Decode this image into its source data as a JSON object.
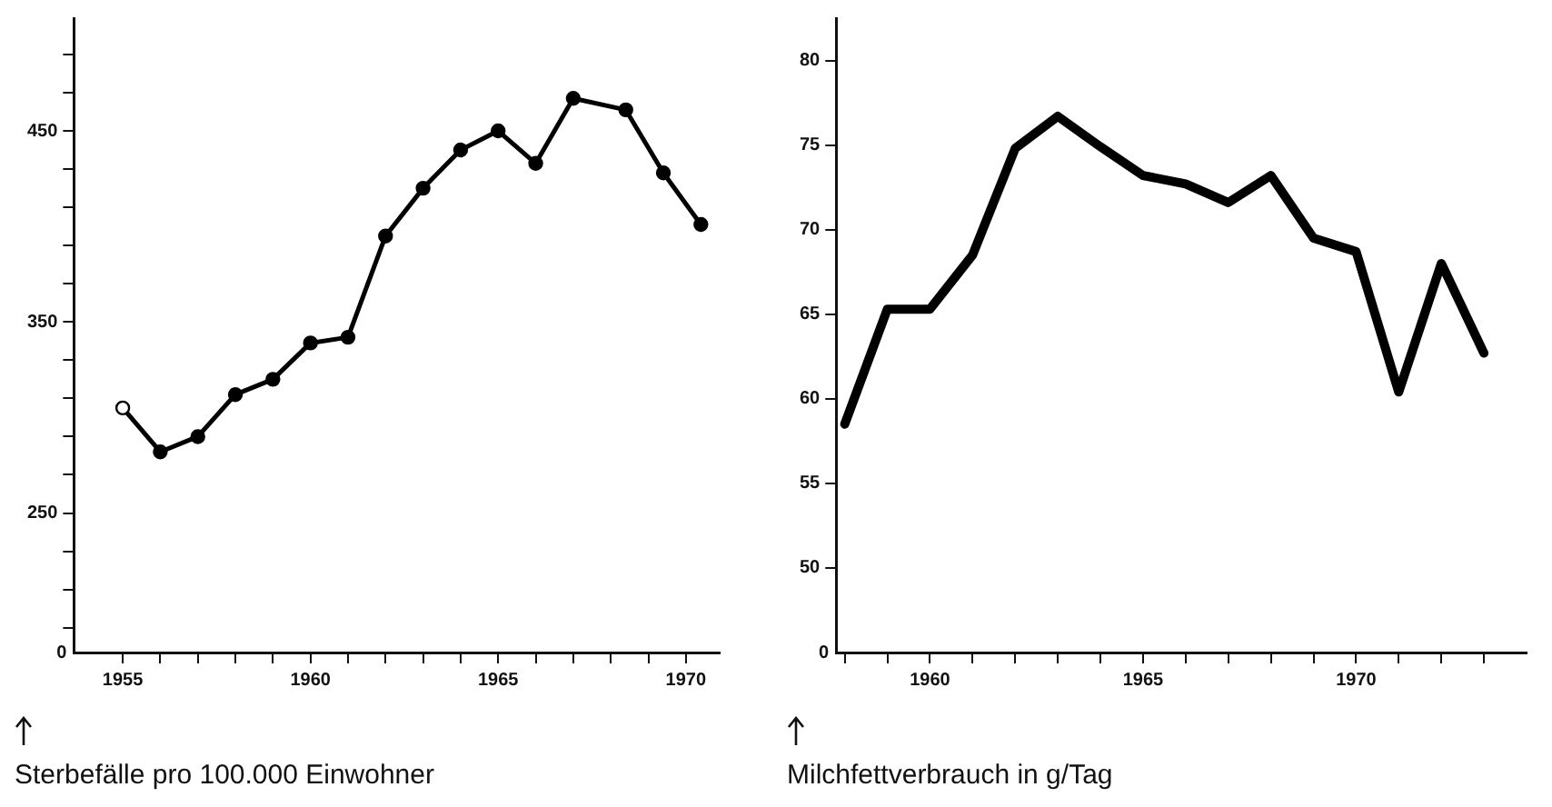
{
  "chart_data": [
    {
      "type": "line",
      "ylabel": "Sterbefälle pro 100.000 Einwohner",
      "annotations": [
        "0"
      ],
      "xlim": [
        1953.7,
        1970.9
      ],
      "xticks": [
        1955,
        {
          "value": 1956,
          "label": null
        },
        {
          "value": 1957,
          "label": null
        },
        {
          "value": 1958,
          "label": null
        },
        {
          "value": 1959,
          "label": null
        },
        1960,
        {
          "value": 1961,
          "label": null
        },
        {
          "value": 1962,
          "label": null
        },
        {
          "value": 1963,
          "label": null
        },
        {
          "value": 1964,
          "label": null
        },
        1965,
        {
          "value": 1966,
          "label": null
        },
        {
          "value": 1967,
          "label": null
        },
        {
          "value": 1968,
          "label": null
        },
        {
          "value": 1969,
          "label": null
        },
        1970
      ],
      "ylim": [
        177,
        509
      ],
      "yticks": [
        {
          "value": 190,
          "label": null
        },
        {
          "value": 210,
          "label": null
        },
        {
          "value": 230,
          "label": null
        },
        250,
        {
          "value": 270,
          "label": null
        },
        {
          "value": 290,
          "label": null
        },
        {
          "value": 310,
          "label": null
        },
        {
          "value": 330,
          "label": null
        },
        350,
        {
          "value": 370,
          "label": null
        },
        {
          "value": 390,
          "label": null
        },
        {
          "value": 410,
          "label": null
        },
        {
          "value": 430,
          "label": null
        },
        450,
        {
          "value": 470,
          "label": null
        },
        {
          "value": 490,
          "label": null
        }
      ],
      "grid": false,
      "legend": false,
      "marker": "circle",
      "line_style": "solid",
      "series": [
        {
          "color": "#000000",
          "colors": [
            "#ffffff",
            "#000000",
            "#000000",
            "#000000",
            "#000000",
            "#000000",
            "#000000",
            "#000000",
            "#000000",
            "#000000",
            "#000000",
            "#000000",
            "#000000",
            "#000000",
            "#000000",
            "#000000"
          ],
          "x": [
            1955,
            1956,
            1957,
            1958,
            1959,
            1960,
            1961,
            1962,
            1963,
            1964,
            1965,
            1966,
            1967,
            1968.4,
            1969.4,
            1970.4
          ],
          "values": [
            305,
            282,
            290,
            312,
            320,
            339,
            342,
            395,
            420,
            440,
            450,
            433,
            467,
            461,
            428,
            401
          ]
        }
      ]
    },
    {
      "type": "line",
      "ylabel": "Milchfettverbrauch in g/Tag",
      "annotations": [
        "0"
      ],
      "xlim": [
        1957.8,
        1974
      ],
      "xticks": [
        {
          "value": 1958,
          "label": null
        },
        {
          "value": 1959,
          "label": null
        },
        1960,
        {
          "value": 1961,
          "label": null
        },
        {
          "value": 1962,
          "label": null
        },
        {
          "value": 1963,
          "label": null
        },
        {
          "value": 1964,
          "label": null
        },
        1965,
        {
          "value": 1966,
          "label": null
        },
        {
          "value": 1967,
          "label": null
        },
        {
          "value": 1968,
          "label": null
        },
        {
          "value": 1969,
          "label": null
        },
        1970,
        {
          "value": 1971,
          "label": null
        },
        {
          "value": 1972,
          "label": null
        },
        {
          "value": 1973,
          "label": null
        }
      ],
      "ylim": [
        45,
        82.5
      ],
      "yticks": [
        50,
        55,
        60,
        65,
        70,
        75,
        80
      ],
      "grid": false,
      "legend": false,
      "marker": "none",
      "line_style": "solid",
      "series": [
        {
          "color": "#000000",
          "x": [
            1958,
            1959,
            1960,
            1961,
            1962,
            1963,
            1964,
            1965,
            1966,
            1967,
            1968,
            1969,
            1970,
            1971,
            1972,
            1973
          ],
          "values": [
            58.5,
            65.3,
            65.3,
            68.5,
            74.8,
            76.7,
            74.9,
            73.2,
            72.7,
            71.6,
            73.2,
            69.5,
            68.7,
            60.4,
            68.0,
            62.7
          ]
        }
      ]
    }
  ]
}
